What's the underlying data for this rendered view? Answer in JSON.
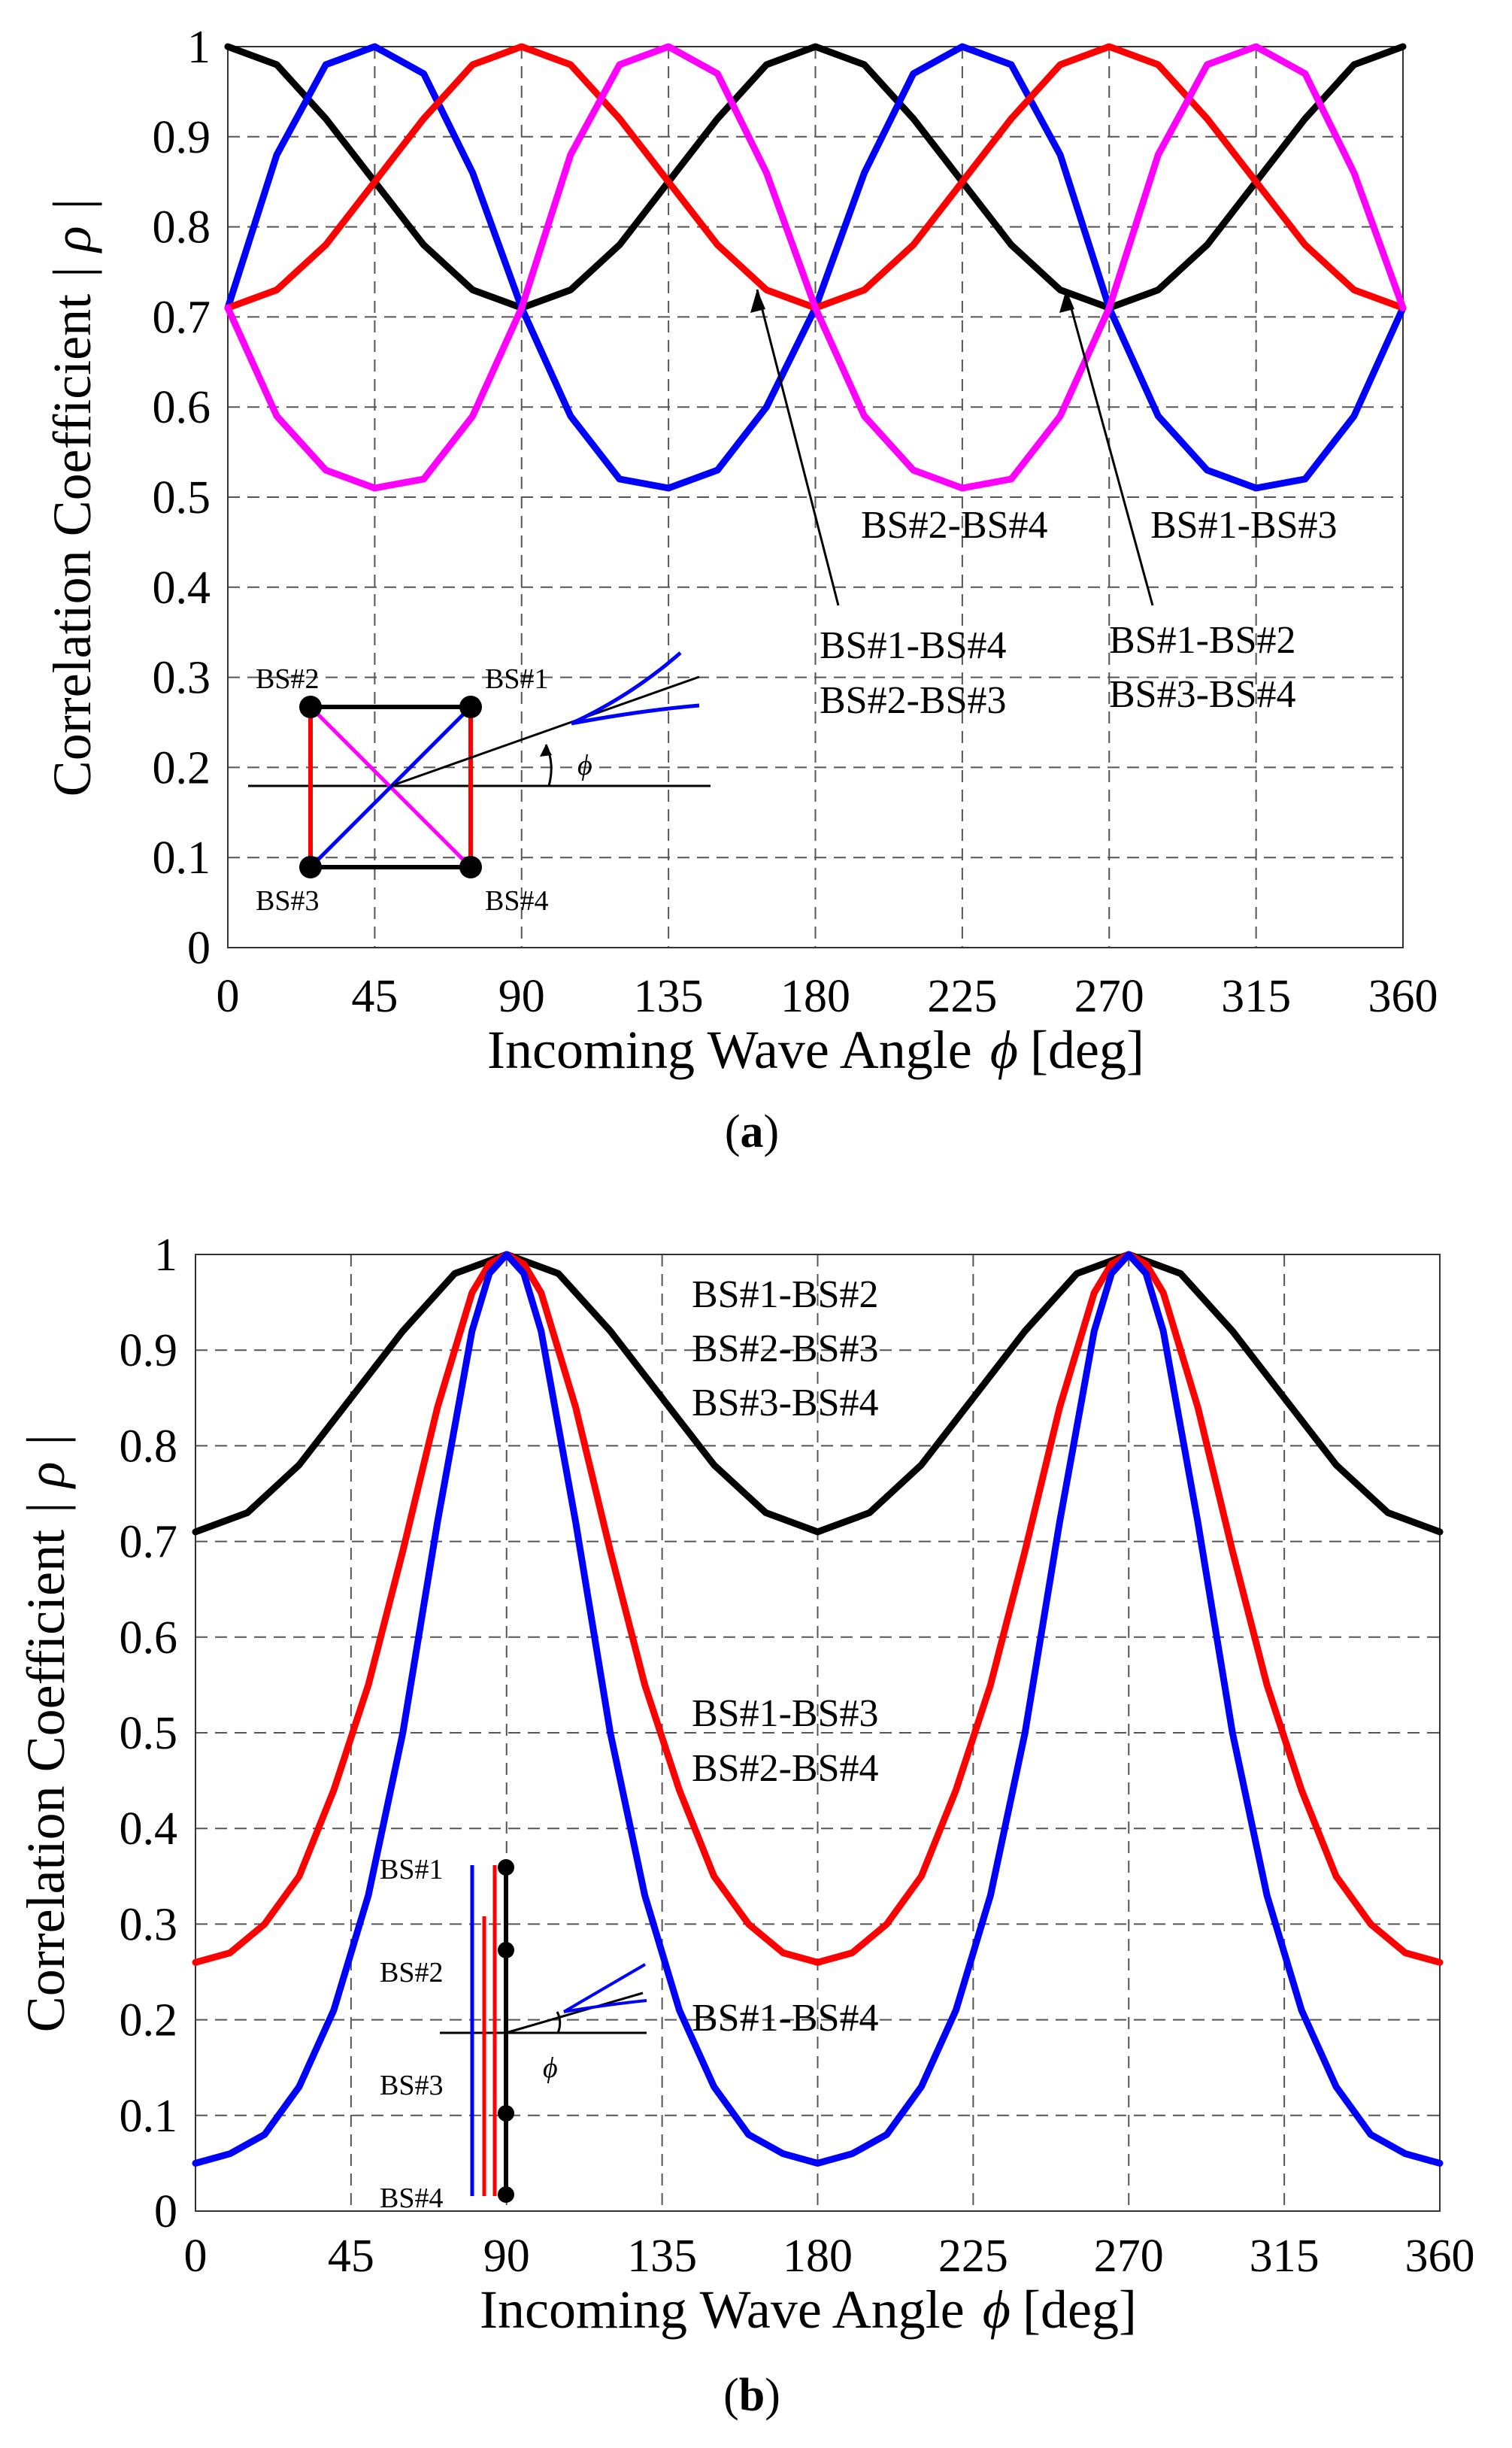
{
  "chart_data": [
    {
      "id": "a",
      "type": "line",
      "panel_label": "a",
      "xlabel": "Incoming Wave Angle",
      "xlabel_symbol": "ϕ",
      "xlabel_unit": "[deg]",
      "ylabel": "Correlation Coefficient",
      "ylabel_symbol": "| ρ |",
      "xlim": [
        0,
        360
      ],
      "ylim": [
        0,
        1
      ],
      "xticks": [
        0,
        45,
        90,
        135,
        180,
        225,
        270,
        315,
        360
      ],
      "xtick_labels": [
        "0",
        "45",
        "90",
        "135",
        "180",
        "225",
        "270",
        "315",
        "360"
      ],
      "yticks": [
        0,
        0.1,
        0.2,
        0.3,
        0.4,
        0.5,
        0.6,
        0.7,
        0.8,
        0.9,
        1
      ],
      "ytick_labels": [
        "0",
        "0.1",
        "0.2",
        "0.3",
        "0.4",
        "0.5",
        "0.6",
        "0.7",
        "0.8",
        "0.9",
        "1"
      ],
      "grid": true,
      "series": [
        {
          "color": "#000000",
          "x": [
            0,
            15,
            30,
            45,
            60,
            75,
            90,
            105,
            120,
            135,
            150,
            165,
            180,
            195,
            210,
            225,
            240,
            255,
            270,
            285,
            300,
            315,
            330,
            345,
            360
          ],
          "values": [
            1,
            0.98,
            0.92,
            0.85,
            0.78,
            0.73,
            0.71,
            0.73,
            0.78,
            0.85,
            0.92,
            0.98,
            1,
            0.98,
            0.92,
            0.85,
            0.78,
            0.73,
            0.71,
            0.73,
            0.78,
            0.85,
            0.92,
            0.98,
            1
          ]
        },
        {
          "color": "#0000ff",
          "x": [
            0,
            15,
            30,
            45,
            60,
            75,
            90,
            105,
            120,
            135,
            150,
            165,
            180,
            195,
            210,
            225,
            240,
            255,
            270,
            285,
            300,
            315,
            330,
            345,
            360
          ],
          "values": [
            0.71,
            0.88,
            0.98,
            1,
            0.97,
            0.86,
            0.71,
            0.59,
            0.52,
            0.51,
            0.53,
            0.6,
            0.71,
            0.86,
            0.97,
            1,
            0.98,
            0.88,
            0.71,
            0.59,
            0.53,
            0.51,
            0.52,
            0.59,
            0.71
          ]
        },
        {
          "color": "#ff0000",
          "x": [
            0,
            15,
            30,
            45,
            60,
            75,
            90,
            105,
            120,
            135,
            150,
            165,
            180,
            195,
            210,
            225,
            240,
            255,
            270,
            285,
            300,
            315,
            330,
            345,
            360
          ],
          "values": [
            0.71,
            0.73,
            0.78,
            0.85,
            0.92,
            0.98,
            1,
            0.98,
            0.92,
            0.85,
            0.78,
            0.73,
            0.71,
            0.73,
            0.78,
            0.85,
            0.92,
            0.98,
            1,
            0.98,
            0.92,
            0.85,
            0.78,
            0.73,
            0.71
          ]
        },
        {
          "color": "#ff00ff",
          "x": [
            0,
            15,
            30,
            45,
            60,
            75,
            90,
            105,
            120,
            135,
            150,
            165,
            180,
            195,
            210,
            225,
            240,
            255,
            270,
            285,
            300,
            315,
            330,
            345,
            360
          ],
          "values": [
            0.71,
            0.59,
            0.53,
            0.51,
            0.52,
            0.59,
            0.71,
            0.88,
            0.98,
            1,
            0.97,
            0.86,
            0.71,
            0.59,
            0.53,
            0.51,
            0.52,
            0.59,
            0.71,
            0.88,
            0.98,
            1,
            0.97,
            0.86,
            0.71
          ]
        }
      ],
      "annotations": {
        "bs24": "BS#2-BS#4",
        "bs13": "BS#1-BS#3",
        "bs14": "BS#1-BS#4",
        "bs23": "BS#2-BS#3",
        "bs12": "BS#1-BS#2",
        "bs34": "BS#3-BS#4"
      },
      "inset": {
        "bs1": "BS#1",
        "bs2": "BS#2",
        "bs3": "BS#3",
        "bs4": "BS#4",
        "phi": "ϕ"
      }
    },
    {
      "id": "b",
      "type": "line",
      "panel_label": "b",
      "xlabel": "Incoming Wave Angle",
      "xlabel_symbol": "ϕ",
      "xlabel_unit": "[deg]",
      "ylabel": "Correlation Coefficient",
      "ylabel_symbol": "| ρ |",
      "xlim": [
        0,
        360
      ],
      "ylim": [
        0,
        1
      ],
      "xticks": [
        0,
        45,
        90,
        135,
        180,
        225,
        270,
        315,
        360
      ],
      "xtick_labels": [
        "0",
        "45",
        "90",
        "135",
        "180",
        "225",
        "270",
        "315",
        "360"
      ],
      "yticks": [
        0,
        0.1,
        0.2,
        0.3,
        0.4,
        0.5,
        0.6,
        0.7,
        0.8,
        0.9,
        1
      ],
      "ytick_labels": [
        "0",
        "0.1",
        "0.2",
        "0.3",
        "0.4",
        "0.5",
        "0.6",
        "0.7",
        "0.8",
        "0.9",
        "1"
      ],
      "grid": true,
      "series": [
        {
          "color": "#000000",
          "x": [
            0,
            15,
            30,
            45,
            60,
            75,
            90,
            105,
            120,
            135,
            150,
            165,
            180,
            195,
            210,
            225,
            240,
            255,
            270,
            285,
            300,
            315,
            330,
            345,
            360
          ],
          "values": [
            0.71,
            0.73,
            0.78,
            0.85,
            0.92,
            0.98,
            1,
            0.98,
            0.92,
            0.85,
            0.78,
            0.73,
            0.71,
            0.73,
            0.78,
            0.85,
            0.92,
            0.98,
            1,
            0.98,
            0.92,
            0.85,
            0.78,
            0.73,
            0.71
          ]
        },
        {
          "color": "#ff0000",
          "x": [
            0,
            10,
            20,
            30,
            40,
            50,
            60,
            70,
            80,
            85,
            90,
            95,
            100,
            110,
            120,
            130,
            140,
            150,
            160,
            170,
            180,
            190,
            200,
            210,
            220,
            230,
            240,
            250,
            260,
            265,
            270,
            275,
            280,
            290,
            300,
            310,
            320,
            330,
            340,
            350,
            360
          ],
          "values": [
            0.26,
            0.27,
            0.3,
            0.35,
            0.44,
            0.55,
            0.69,
            0.84,
            0.96,
            0.99,
            1,
            0.99,
            0.96,
            0.84,
            0.69,
            0.55,
            0.44,
            0.35,
            0.3,
            0.27,
            0.26,
            0.27,
            0.3,
            0.35,
            0.44,
            0.55,
            0.69,
            0.84,
            0.96,
            0.99,
            1,
            0.99,
            0.96,
            0.84,
            0.69,
            0.55,
            0.44,
            0.35,
            0.3,
            0.27,
            0.26
          ]
        },
        {
          "color": "#0000ff",
          "x": [
            0,
            10,
            20,
            30,
            40,
            50,
            60,
            70,
            80,
            85,
            90,
            95,
            100,
            110,
            120,
            130,
            140,
            150,
            160,
            170,
            180,
            190,
            200,
            210,
            220,
            230,
            240,
            250,
            260,
            265,
            270,
            275,
            280,
            290,
            300,
            310,
            320,
            330,
            340,
            350,
            360
          ],
          "values": [
            0.05,
            0.06,
            0.08,
            0.13,
            0.21,
            0.33,
            0.5,
            0.72,
            0.92,
            0.98,
            1,
            0.98,
            0.92,
            0.72,
            0.5,
            0.33,
            0.21,
            0.13,
            0.08,
            0.06,
            0.05,
            0.06,
            0.08,
            0.13,
            0.21,
            0.33,
            0.5,
            0.72,
            0.92,
            0.98,
            1,
            0.98,
            0.92,
            0.72,
            0.5,
            0.33,
            0.21,
            0.13,
            0.08,
            0.06,
            0.05
          ]
        }
      ],
      "annotations": {
        "bs12": "BS#1-BS#2",
        "bs23": "BS#2-BS#3",
        "bs34": "BS#3-BS#4",
        "bs13": "BS#1-BS#3",
        "bs24": "BS#2-BS#4",
        "bs14": "BS#1-BS#4"
      },
      "inset": {
        "bs1": "BS#1",
        "bs2": "BS#2",
        "bs3": "BS#3",
        "bs4": "BS#4",
        "phi": "ϕ"
      }
    }
  ]
}
